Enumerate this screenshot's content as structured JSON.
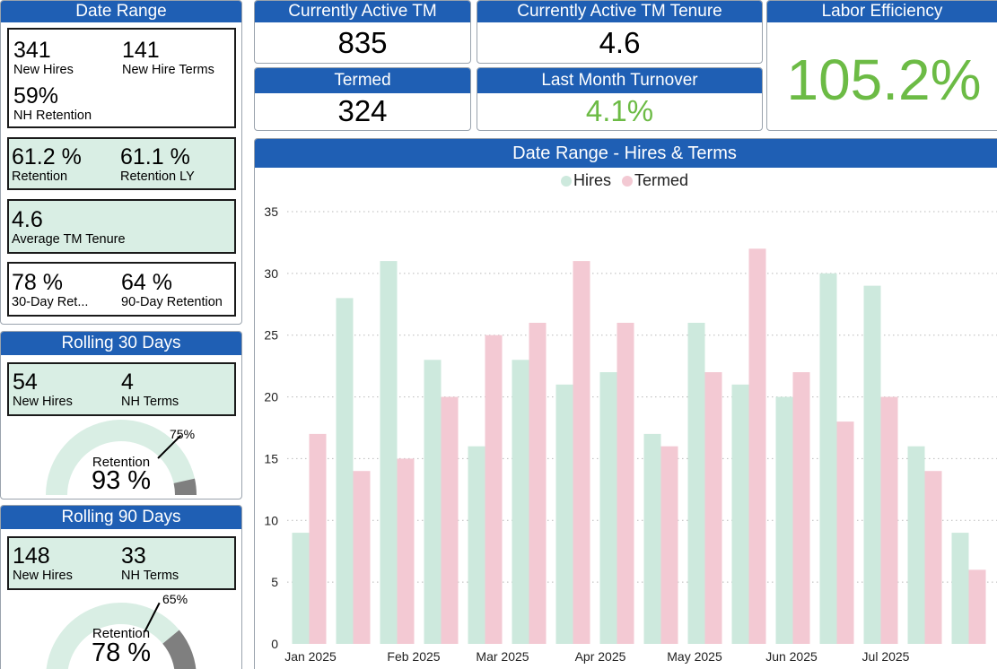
{
  "date_range": {
    "title": "Date Range",
    "card1": {
      "new_hires": "341",
      "new_hires_label": "New Hires",
      "new_hire_terms": "141",
      "new_hire_terms_label": "New Hire Terms",
      "nh_retention": "59%",
      "nh_retention_label": "NH Retention"
    },
    "card2": {
      "retention": "61.2 %",
      "retention_label": "Retention",
      "retention_ly": "61.1 %",
      "retention_ly_label": "Retention LY"
    },
    "card3": {
      "tenure": "4.6",
      "tenure_label": "Average TM Tenure"
    },
    "card4": {
      "ret30": "78 %",
      "ret30_label": "30-Day Ret...",
      "ret90": "64 %",
      "ret90_label": "90-Day Retention"
    }
  },
  "rolling30": {
    "title": "Rolling 30 Days",
    "new_hires": "54",
    "new_hires_label": "New Hires",
    "nh_terms": "4",
    "nh_terms_label": "NH Terms",
    "gauge": {
      "label": "Retention",
      "value_text": "93 %",
      "value": 93,
      "target_text": "75%",
      "target": 75
    }
  },
  "rolling90": {
    "title": "Rolling 90 Days",
    "new_hires": "148",
    "new_hires_label": "New Hires",
    "nh_terms": "33",
    "nh_terms_label": "NH Terms",
    "gauge": {
      "label": "Retention",
      "value_text": "78 %",
      "value": 78,
      "target_text": "65%",
      "target": 65
    }
  },
  "kpis": {
    "active_tm": {
      "title": "Currently Active TM",
      "value": "835"
    },
    "active_tenure": {
      "title": "Currently Active TM Tenure",
      "value": "4.6"
    },
    "termed": {
      "title": "Termed",
      "value": "324"
    },
    "last_month_turnover": {
      "title": "Last Month Turnover",
      "value": "4.1%"
    },
    "labor_efficiency": {
      "title": "Labor Efficiency",
      "value": "105.2%"
    }
  },
  "colors": {
    "header": "#1f5fb4",
    "hires": "#cde9dd",
    "termed": "#f3c9d3",
    "green": "#6cbb45",
    "gauge_fill": "#d9eee4",
    "gauge_rest": "#7f7f7f"
  },
  "chart_data": {
    "type": "bar",
    "title": "Date Range - Hires & Terms",
    "legend_position": "top-center",
    "ylim": [
      0,
      35
    ],
    "y_ticks": [
      0,
      5,
      10,
      15,
      20,
      25,
      30,
      35
    ],
    "x_tick_labels": [
      "Jan 2025",
      "Feb 2025",
      "Mar 2025",
      "Apr 2025",
      "May 2025",
      "Jun 2025",
      "Jul 2025"
    ],
    "grid": true,
    "series": [
      {
        "name": "Hires",
        "values": [
          9,
          28,
          31,
          23,
          16,
          23,
          21,
          22,
          17,
          26,
          21,
          20,
          30,
          29,
          16,
          9
        ]
      },
      {
        "name": "Termed",
        "values": [
          17,
          14,
          15,
          20,
          25,
          26,
          31,
          26,
          16,
          22,
          32,
          22,
          18,
          20,
          14,
          6
        ]
      }
    ]
  }
}
